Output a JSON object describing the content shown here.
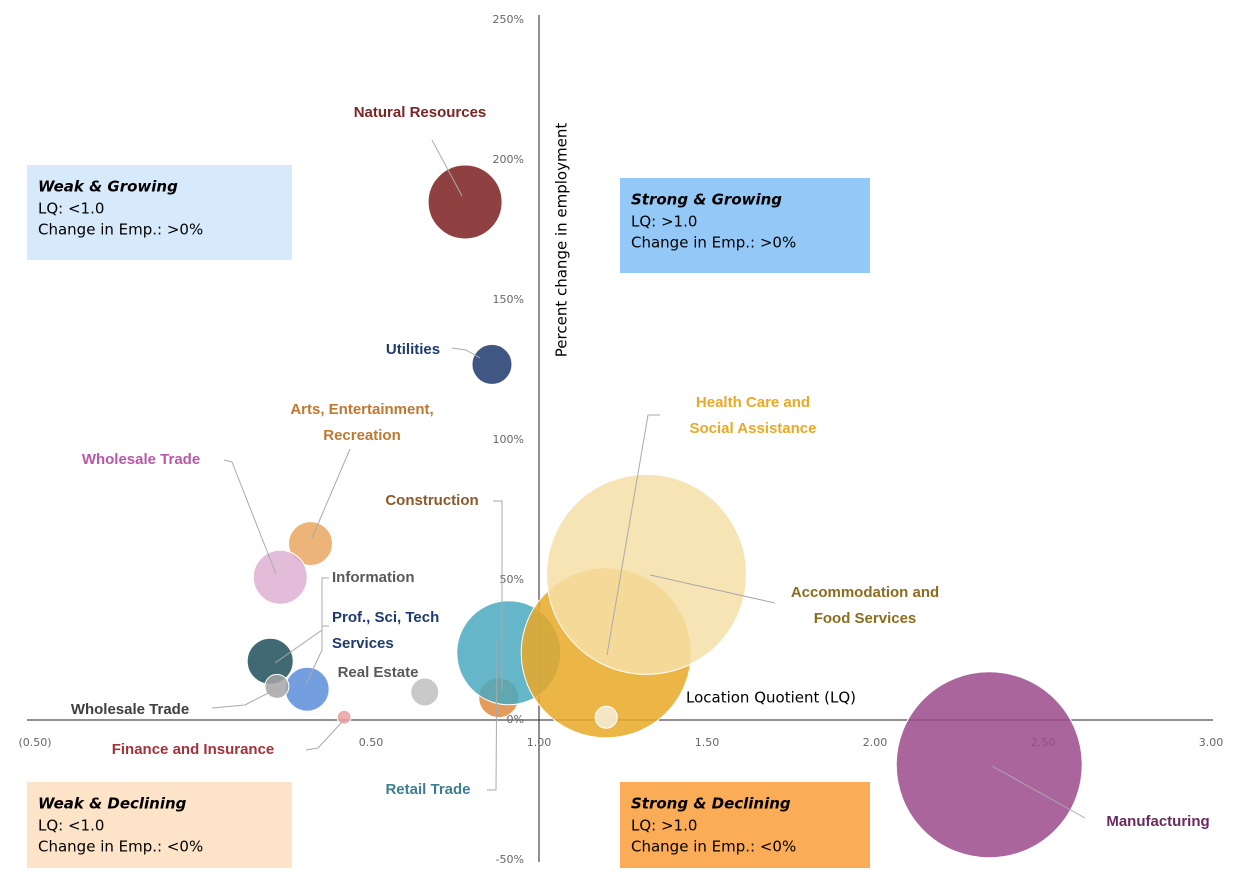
{
  "chart_data": {
    "type": "bubble",
    "x_label": "Location Quotient (LQ)",
    "y_label": "Percent change in employment",
    "xlim": [
      -0.5,
      3.0
    ],
    "xticks": [
      {
        "value": -0.5,
        "label": "(0.50)"
      },
      {
        "value": 0.5,
        "label": "0.50"
      },
      {
        "value": 1.0,
        "label": "1.00"
      },
      {
        "value": 1.5,
        "label": "1.50"
      },
      {
        "value": 2.0,
        "label": "2.00"
      },
      {
        "value": 2.5,
        "label": "2.50"
      },
      {
        "value": 3.0,
        "label": "3.00"
      }
    ],
    "ylim": [
      -50,
      250
    ],
    "yticks": [
      {
        "value": -50,
        "label": "-50%"
      },
      {
        "value": 0,
        "label": "0%"
      },
      {
        "value": 50,
        "label": "50%"
      },
      {
        "value": 100,
        "label": "100%"
      },
      {
        "value": 150,
        "label": "150%"
      },
      {
        "value": 200,
        "label": "200%"
      },
      {
        "value": 250,
        "label": "250%"
      }
    ],
    "categories": [
      [
        "Natural Resources"
      ],
      [
        "Utilities"
      ],
      [
        "Arts, Entertainment,",
        "Recreation"
      ],
      [
        "Wholesale Trade"
      ],
      [
        "Information"
      ],
      [
        "Prof., Sci, Tech",
        "Services"
      ],
      [
        "Wholesale Trade"
      ],
      [
        "Real Estate"
      ],
      [
        "Finance and Insurance"
      ],
      [
        "Construction"
      ],
      [
        "Retail Trade"
      ],
      [
        "Health Care and",
        "Social Assistance"
      ],
      [
        "Accommodation and",
        "Food Services"
      ],
      null,
      [
        "Manufacturing"
      ]
    ],
    "x": [
      0.78,
      0.86,
      0.32,
      0.23,
      0.2,
      0.31,
      0.22,
      0.66,
      0.42,
      0.88,
      0.91,
      1.2,
      1.32,
      1.2,
      2.34
    ],
    "values": [
      185,
      127,
      63,
      51,
      21,
      11,
      12,
      10,
      1,
      8,
      24,
      24,
      52,
      1,
      -16
    ],
    "sizes": [
      37,
      20,
      22,
      27,
      23,
      22,
      12,
      14,
      7,
      20,
      52,
      85,
      100,
      11,
      93
    ],
    "colors": [
      "#7b1f1f",
      "#1f3a6e",
      "#eaa763",
      "#ddb0d2",
      "#1e4f5a",
      "#5b8dd9",
      "#a6a6a6",
      "#bfbfbf",
      "#e8a0a0",
      "#e08a3c",
      "#4aa9bf",
      "#e9a927",
      "#f6dfa8",
      "#f3efdc",
      "#9c4a8c"
    ],
    "label_colors": [
      "#7b2424",
      "#1f3a6e",
      "#c0772f",
      "#b957a8",
      "#595959",
      "#1f3a6e",
      "#404040",
      "#595959",
      "#a3333a",
      "#8b5a2b",
      "#3b7f8f",
      "#e9a927",
      "#8b6d1f",
      null,
      "#6b2a5b"
    ],
    "quadrants": [
      {
        "title": "Weak & Growing",
        "lines": [
          "LQ: <1.0",
          "Change in Emp.: >0%"
        ],
        "color": "#d6eafc"
      },
      {
        "title": "Strong & Growing",
        "lines": [
          "LQ: >1.0",
          "Change in Emp.: >0%"
        ],
        "color": "#94c8f7"
      },
      {
        "title": "Weak & Declining",
        "lines": [
          "LQ: <1.0",
          "Change in Emp.: <0%"
        ],
        "color": "#fde3c8"
      },
      {
        "title": "Strong & Declining",
        "lines": [
          "LQ: >1.0",
          "Change in Emp.: <0%"
        ],
        "color": "#fbac57"
      }
    ]
  }
}
